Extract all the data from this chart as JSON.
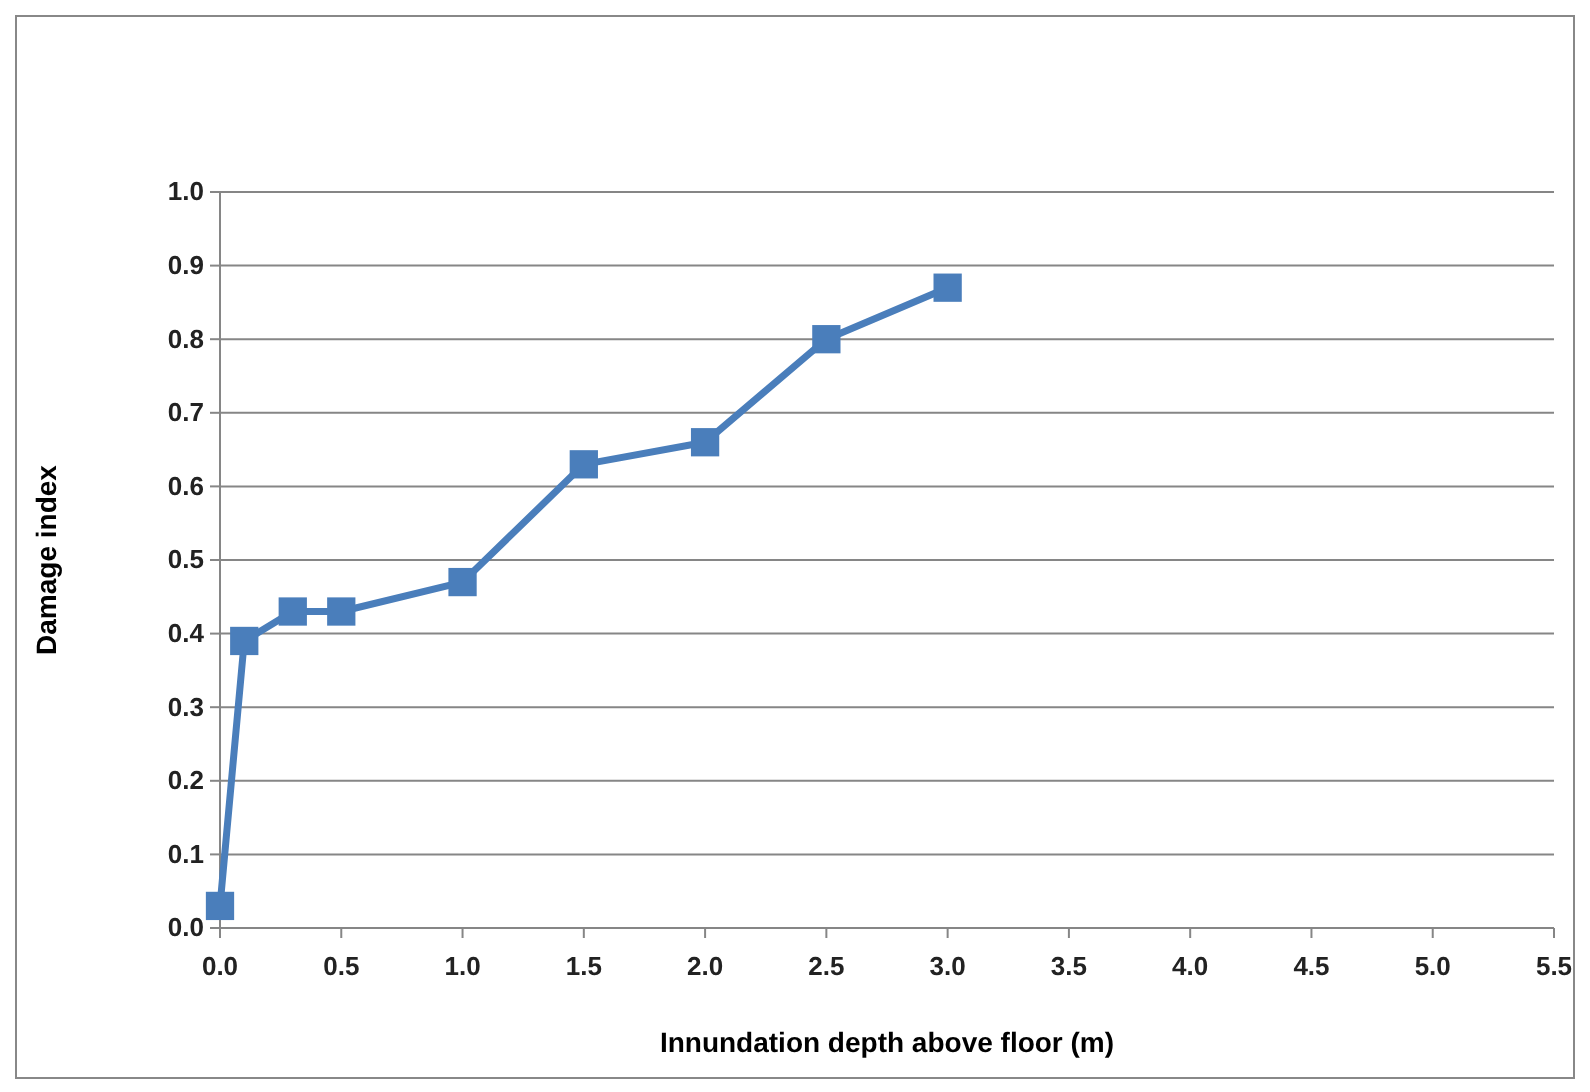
{
  "chart_data": {
    "type": "line",
    "xlabel": "Innundation depth above floor (m)",
    "ylabel": "Damage index",
    "x": [
      0,
      0.1,
      0.3,
      0.5,
      1.0,
      1.5,
      2.0,
      2.5,
      3.0
    ],
    "series": [
      {
        "color": "#4a7ebb",
        "values": [
          0.03,
          0.39,
          0.43,
          0.43,
          0.47,
          0.63,
          0.66,
          0.8,
          0.87
        ]
      }
    ],
    "xlim": [
      0,
      5.5
    ],
    "xticks": [
      {
        "value": 0,
        "label": "0.0"
      },
      {
        "value": 0.5,
        "label": "0.5"
      },
      {
        "value": 1,
        "label": "1.0"
      },
      {
        "value": 1.5,
        "label": "1.5"
      },
      {
        "value": 2,
        "label": "2.0"
      },
      {
        "value": 2.5,
        "label": "2.5"
      },
      {
        "value": 3,
        "label": "3.0"
      },
      {
        "value": 3.5,
        "label": "3.5"
      },
      {
        "value": 4,
        "label": "4.0"
      },
      {
        "value": 4.5,
        "label": "4.5"
      },
      {
        "value": 5,
        "label": "5.0"
      },
      {
        "value": 5.5,
        "label": "5.5"
      }
    ],
    "ylim": [
      0,
      1
    ],
    "yticks": [
      {
        "value": 0,
        "label": "0.0"
      },
      {
        "value": 0.1,
        "label": "0.1"
      },
      {
        "value": 0.2,
        "label": "0.2"
      },
      {
        "value": 0.3,
        "label": "0.3"
      },
      {
        "value": 0.4,
        "label": "0.4"
      },
      {
        "value": 0.5,
        "label": "0.5"
      },
      {
        "value": 0.6,
        "label": "0.6"
      },
      {
        "value": 0.7,
        "label": "0.7"
      },
      {
        "value": 0.8,
        "label": "0.8"
      },
      {
        "value": 0.9,
        "label": "0.9"
      },
      {
        "value": 1,
        "label": "1.0"
      }
    ],
    "grid": "y",
    "marker": "square",
    "line_style": "solid"
  }
}
